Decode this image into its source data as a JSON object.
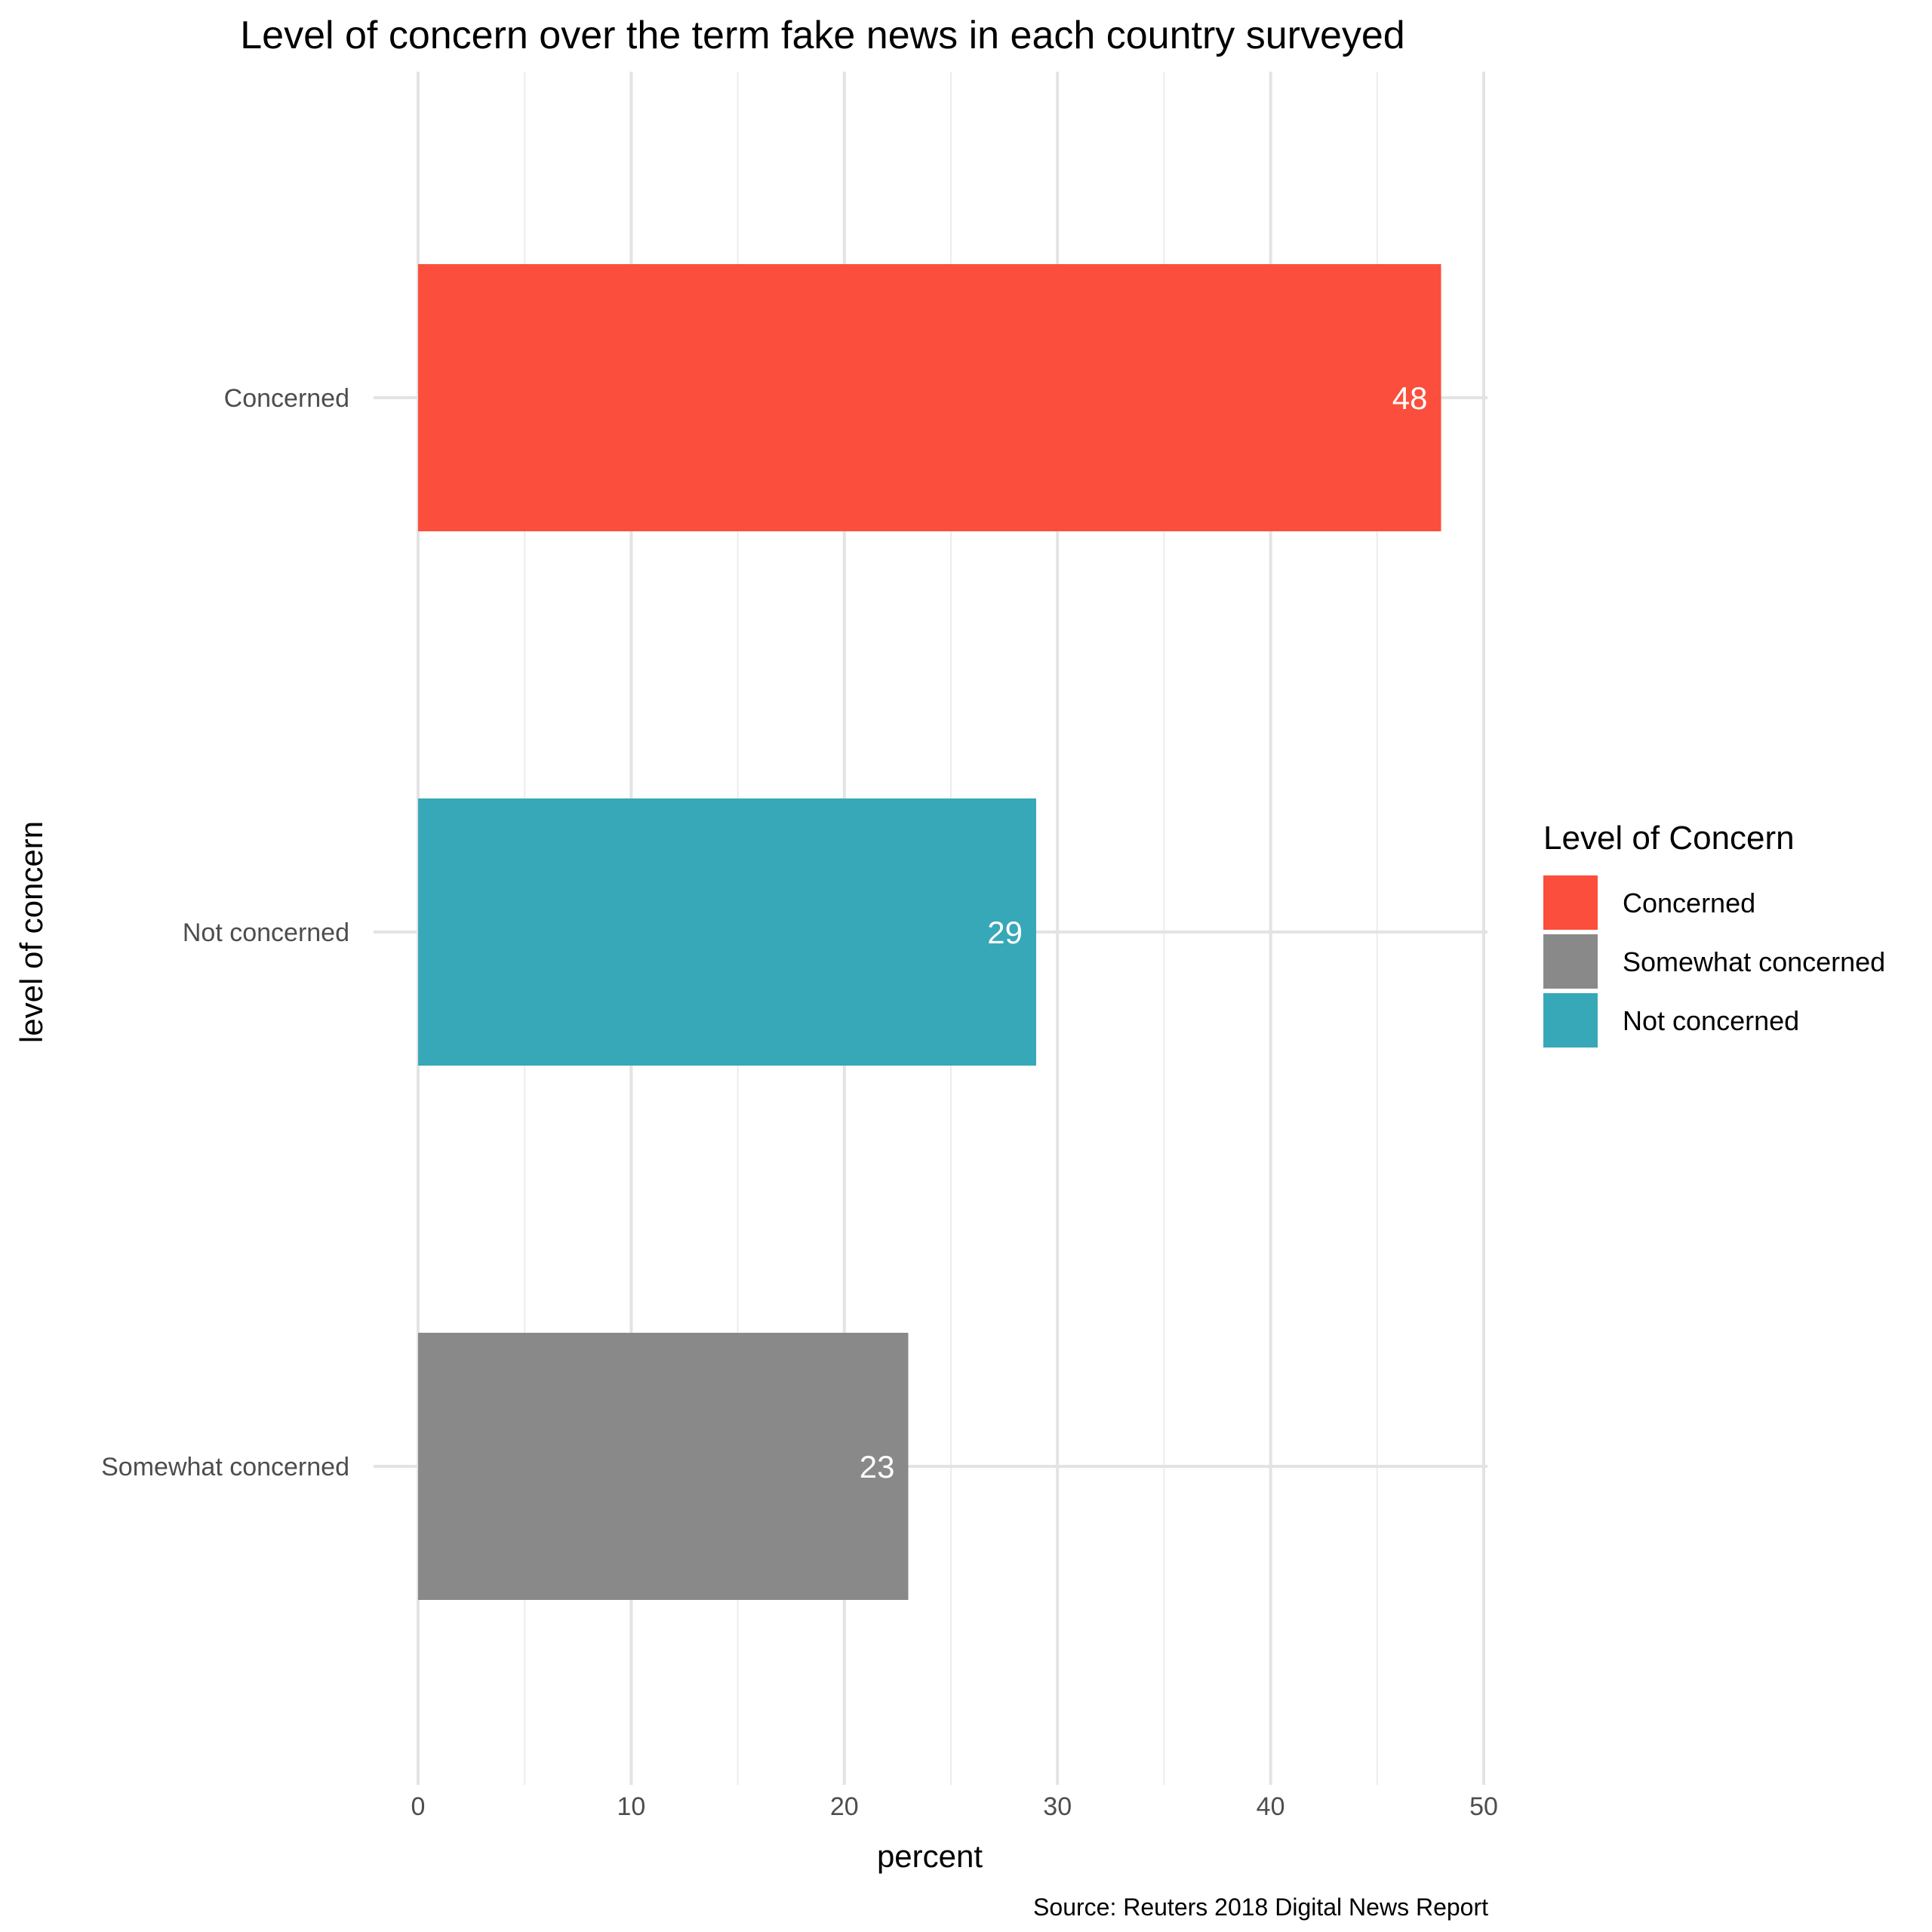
{
  "chart_data": {
    "type": "bar",
    "orientation": "horizontal",
    "title": "Level of concern over the term fake news in each country surveyed",
    "xlabel": "percent",
    "ylabel": "level of concern",
    "caption": "Source: Reuters 2018 Digital News Report",
    "categories": [
      "Concerned",
      "Not concerned",
      "Somewhat concerned"
    ],
    "values": [
      48,
      29,
      23
    ],
    "value_labels": [
      "48",
      "29",
      "23"
    ],
    "bar_colors": [
      "#fc4e3c",
      "#37a8b7",
      "#898989"
    ],
    "xlim": [
      0,
      50
    ],
    "x_ticks": [
      0,
      10,
      20,
      30,
      40,
      50
    ],
    "x_tick_labels": [
      "0",
      "10",
      "20",
      "30",
      "40",
      "50"
    ],
    "grid": true,
    "legend": {
      "title": "Level of Concern",
      "position": "right",
      "entries": [
        {
          "label": "Concerned",
          "color": "#fc4e3c"
        },
        {
          "label": "Somewhat concerned",
          "color": "#898989"
        },
        {
          "label": "Not concerned",
          "color": "#37a8b7"
        }
      ]
    }
  }
}
